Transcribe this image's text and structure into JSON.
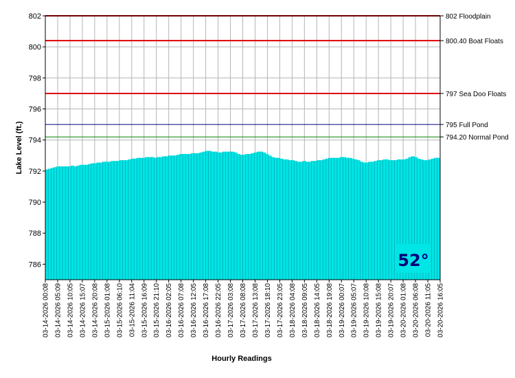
{
  "chart_data": {
    "type": "area",
    "title": "",
    "xlabel": "Hourly Readings",
    "ylabel": "Lake Level (ft.)",
    "ylim": [
      785,
      802
    ],
    "y_ticks": [
      786,
      788,
      790,
      792,
      794,
      796,
      798,
      800,
      802
    ],
    "grid": true,
    "x_tick_labels": [
      "03-14-2026 00:08",
      "03-14-2026 05:09",
      "03-14-2026 10:05",
      "03-14-2026 15:07",
      "03-14-2026 20:08",
      "03-15-2026 01:08",
      "03-15-2026 06:10",
      "03-15-2026 11:04",
      "03-15-2026 16:09",
      "03-15-2026 21:10",
      "03-16-2026 02:05",
      "03-16-2026 07:08",
      "03-16-2026 12:05",
      "03-16-2026 17:08",
      "03-16-2026 22:05",
      "03-17-2026 03:08",
      "03-17-2026 08:08",
      "03-17-2026 13:08",
      "03-17-2026 18:10",
      "03-17-2026 23:05",
      "03-18-2026 04:08",
      "03-18-2026 09:05",
      "03-18-2026 14:05",
      "03-18-2026 19:08",
      "03-19-2026 00:07",
      "03-19-2026 05:07",
      "03-19-2026 10:08",
      "03-19-2026 15:08",
      "03-19-2026 20:07",
      "03-20-2026 01:08",
      "03-20-2026 06:08",
      "03-20-2026 11:05",
      "03-20-2026 16:05"
    ],
    "series": [
      {
        "color": "#00e5e5",
        "values": [
          792.1,
          792.15,
          792.2,
          792.25,
          792.3,
          792.3,
          792.3,
          792.3,
          792.3,
          792.35,
          792.3,
          792.35,
          792.4,
          792.4,
          792.4,
          792.45,
          792.5,
          792.5,
          792.55,
          792.55,
          792.6,
          792.6,
          792.6,
          792.65,
          792.65,
          792.65,
          792.7,
          792.7,
          792.7,
          792.75,
          792.8,
          792.8,
          792.85,
          792.85,
          792.85,
          792.9,
          792.9,
          792.9,
          792.85,
          792.9,
          792.9,
          792.95,
          792.95,
          793.0,
          793.0,
          793.0,
          793.05,
          793.1,
          793.1,
          793.1,
          793.1,
          793.15,
          793.15,
          793.15,
          793.2,
          793.25,
          793.3,
          793.3,
          793.25,
          793.25,
          793.2,
          793.2,
          793.25,
          793.25,
          793.25,
          793.25,
          793.2,
          793.1,
          793.05,
          793.05,
          793.1,
          793.1,
          793.15,
          793.2,
          793.25,
          793.25,
          793.2,
          793.1,
          793.0,
          792.9,
          792.85,
          792.85,
          792.8,
          792.75,
          792.75,
          792.7,
          792.7,
          792.65,
          792.6,
          792.6,
          792.65,
          792.6,
          792.6,
          792.65,
          792.65,
          792.7,
          792.7,
          792.75,
          792.8,
          792.85,
          792.85,
          792.85,
          792.85,
          792.9,
          792.9,
          792.85,
          792.85,
          792.8,
          792.75,
          792.7,
          792.6,
          792.55,
          792.55,
          792.6,
          792.6,
          792.65,
          792.7,
          792.7,
          792.75,
          792.75,
          792.7,
          792.7,
          792.7,
          792.75,
          792.75,
          792.75,
          792.8,
          792.9,
          792.95,
          792.9,
          792.8,
          792.75,
          792.7,
          792.7,
          792.75,
          792.8,
          792.85,
          792.85
        ]
      }
    ],
    "reference_lines": [
      {
        "value": 802,
        "label": "802 Floodplain",
        "color": "#dd0000"
      },
      {
        "value": 800.4,
        "label": "800.40 Boat Floats",
        "color": "#dd0000"
      },
      {
        "value": 797,
        "label": "797 Sea Doo Floats",
        "color": "#dd0000"
      },
      {
        "value": 795,
        "label": "795 Full Pond",
        "color": "#000080"
      },
      {
        "value": 794.2,
        "label": "794.20 Normal Pond",
        "color": "#008000"
      }
    ]
  },
  "temperature_badge": {
    "value": "52°",
    "background": "#00e5e5",
    "text_color": "#00007a"
  }
}
